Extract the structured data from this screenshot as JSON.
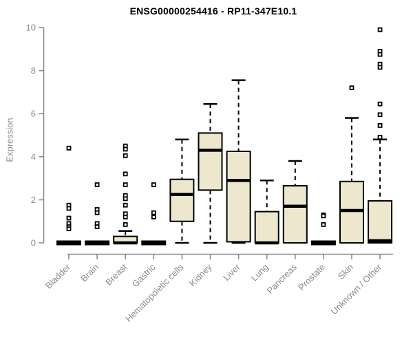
{
  "chart_data": {
    "type": "boxplot",
    "title": "ENSG00000254416 - RP11-347E10.1",
    "ylabel": "Expression",
    "xlabel": "",
    "ylim": [
      0,
      10
    ],
    "yticks": [
      0,
      2,
      4,
      6,
      8,
      10
    ],
    "grid": false,
    "legend": "none",
    "colors": {
      "box_fill": "#EDE8CD",
      "box_stroke": "#000000",
      "median": "#000000",
      "whisker": "#000000",
      "axis": "#8a8a8a",
      "tick_label": "#8a8a8a",
      "title": "#000000",
      "background": "#ffffff"
    },
    "categories": [
      "Bladder",
      "Brain",
      "Breast",
      "Gastric",
      "Hematopoietic cells",
      "Kidney",
      "Liver",
      "Lung",
      "Pancreas",
      "Prostate",
      "Skin",
      "Unknown / Other"
    ],
    "series": [
      {
        "category": "Bladder",
        "whisker_low": 0,
        "q1": 0,
        "median": 0,
        "q3": 0,
        "whisker_high": 0,
        "outliers": [
          4.4,
          1.75,
          1.6,
          1.15,
          0.9,
          0.75,
          0.65
        ]
      },
      {
        "category": "Brain",
        "whisker_low": 0,
        "q1": 0,
        "median": 0,
        "q3": 0,
        "whisker_high": 0,
        "outliers": [
          2.7,
          1.55,
          1.4,
          0.9,
          0.75
        ]
      },
      {
        "category": "Breast",
        "whisker_low": 0,
        "q1": 0,
        "median": 0,
        "q3": 0.3,
        "whisker_high": 0.55,
        "outliers": [
          4.5,
          4.35,
          4.05,
          3.2,
          2.7,
          2.2,
          2.05,
          1.75,
          1.35,
          1.2,
          0.85
        ]
      },
      {
        "category": "Gastric",
        "whisker_low": 0,
        "q1": 0,
        "median": 0,
        "q3": 0,
        "whisker_high": 0,
        "outliers": [
          2.7,
          1.4,
          1.2
        ]
      },
      {
        "category": "Hematopoietic cells",
        "whisker_low": 0,
        "q1": 1.0,
        "median": 2.25,
        "q3": 2.95,
        "whisker_high": 4.8,
        "outliers": []
      },
      {
        "category": "Kidney",
        "whisker_low": 0,
        "q1": 2.45,
        "median": 4.3,
        "q3": 5.1,
        "whisker_high": 6.45,
        "outliers": []
      },
      {
        "category": "Liver",
        "whisker_low": 0,
        "q1": 0.05,
        "median": 2.9,
        "q3": 4.25,
        "whisker_high": 7.55,
        "outliers": []
      },
      {
        "category": "Lung",
        "whisker_low": 0,
        "q1": 0,
        "median": 0,
        "q3": 1.45,
        "whisker_high": 2.9,
        "outliers": []
      },
      {
        "category": "Pancreas",
        "whisker_low": 0,
        "q1": 0,
        "median": 1.7,
        "q3": 2.65,
        "whisker_high": 3.8,
        "outliers": []
      },
      {
        "category": "Prostate",
        "whisker_low": 0,
        "q1": 0,
        "median": 0,
        "q3": 0,
        "whisker_high": 0,
        "outliers": [
          1.3,
          1.25,
          0.85
        ]
      },
      {
        "category": "Skin",
        "whisker_low": 0,
        "q1": 0,
        "median": 1.5,
        "q3": 2.85,
        "whisker_high": 5.8,
        "outliers": [
          7.2
        ]
      },
      {
        "category": "Unknown / Other",
        "whisker_low": 0,
        "q1": 0,
        "median": 0.1,
        "q3": 1.95,
        "whisker_high": 4.8,
        "outliers": [
          9.9,
          8.9,
          8.75,
          8.3,
          8.15,
          6.45,
          5.95,
          5.45,
          4.9
        ]
      }
    ]
  }
}
